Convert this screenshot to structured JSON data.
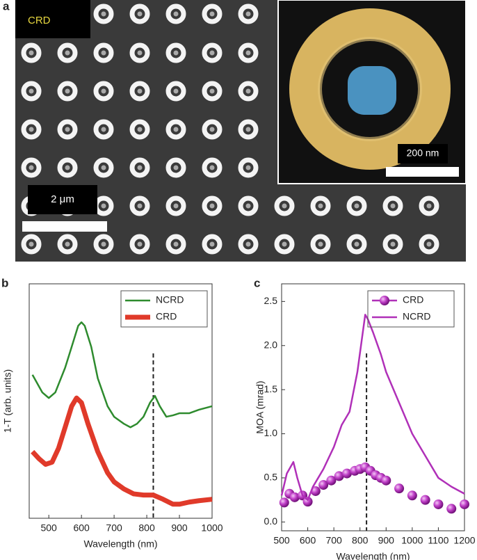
{
  "panel_a": {
    "label": "a",
    "tag": "CRD",
    "scale_bar": "2 μm",
    "inset_scale_bar": "200 nm"
  },
  "chart_data": [
    {
      "type": "line",
      "panel_label": "b",
      "x_label": "Wavelength (nm)",
      "y_label": "1-T (arb. units)",
      "xlim": [
        440,
        1000
      ],
      "xticks": [
        500,
        600,
        700,
        800,
        900,
        1000
      ],
      "ylim": [
        0,
        10
      ],
      "marker_x": 820,
      "legend": "upper right",
      "series": [
        {
          "name": "NCRD",
          "color": "#2e8b2e",
          "line_width": 2.5,
          "x": [
            450,
            480,
            500,
            520,
            550,
            570,
            590,
            600,
            610,
            630,
            650,
            680,
            700,
            730,
            750,
            770,
            790,
            810,
            825,
            840,
            860,
            880,
            900,
            930,
            960,
            1000
          ],
          "values": [
            6.12,
            5.37,
            5.13,
            5.37,
            6.42,
            7.31,
            8.21,
            8.36,
            8.21,
            7.31,
            5.97,
            4.78,
            4.33,
            4.03,
            3.88,
            4.03,
            4.33,
            4.93,
            5.22,
            4.78,
            4.33,
            4.39,
            4.48,
            4.48,
            4.63,
            4.78
          ]
        },
        {
          "name": "CRD",
          "color": "#e03a2a",
          "line_width": 7,
          "x": [
            450,
            470,
            490,
            510,
            530,
            550,
            570,
            585,
            600,
            620,
            650,
            680,
            700,
            730,
            760,
            790,
            820,
            850,
            880,
            900,
            930,
            960,
            1000
          ],
          "values": [
            2.84,
            2.54,
            2.3,
            2.39,
            2.99,
            3.88,
            4.78,
            5.13,
            4.93,
            4.03,
            2.84,
            1.94,
            1.55,
            1.25,
            1.04,
            0.99,
            0.99,
            0.81,
            0.6,
            0.6,
            0.69,
            0.75,
            0.81
          ]
        }
      ]
    },
    {
      "type": "line",
      "panel_label": "c",
      "x_label": "Wavelength (nm)",
      "y_label": "MOA (mrad)",
      "xlim": [
        500,
        1200
      ],
      "xticks": [
        500,
        600,
        700,
        800,
        900,
        1000,
        1100,
        1200
      ],
      "ylim": [
        -0.1,
        2.7
      ],
      "yticks": [
        {
          "value": 0,
          "label": "0.0"
        },
        {
          "value": 0.5,
          "label": "0.5"
        },
        {
          "value": 1,
          "label": "1.0"
        },
        {
          "value": 1.5,
          "label": "1.5"
        },
        {
          "value": 2,
          "label": "2.0"
        },
        {
          "value": 2.5,
          "label": "2.5"
        }
      ],
      "marker_x": 825,
      "legend": "upper right",
      "series": [
        {
          "name": "CRD",
          "color": "#b030b8",
          "marker": "circle",
          "x": [
            510,
            530,
            550,
            580,
            600,
            630,
            660,
            690,
            720,
            750,
            780,
            800,
            820,
            840,
            860,
            880,
            900,
            950,
            1000,
            1050,
            1100,
            1150,
            1200
          ],
          "values": [
            0.22,
            0.32,
            0.28,
            0.3,
            0.23,
            0.35,
            0.42,
            0.47,
            0.52,
            0.55,
            0.58,
            0.6,
            0.62,
            0.58,
            0.53,
            0.5,
            0.47,
            0.38,
            0.3,
            0.25,
            0.2,
            0.15,
            0.2
          ]
        },
        {
          "name": "NCRD",
          "color": "#b030b8",
          "line_width": 2.5,
          "x": [
            500,
            520,
            545,
            560,
            580,
            600,
            620,
            640,
            660,
            700,
            730,
            760,
            790,
            820,
            830,
            850,
            880,
            900,
            950,
            1000,
            1050,
            1100,
            1150,
            1200
          ],
          "values": [
            0.3,
            0.55,
            0.68,
            0.5,
            0.3,
            0.25,
            0.4,
            0.5,
            0.6,
            0.85,
            1.1,
            1.25,
            1.7,
            2.35,
            2.3,
            2.15,
            1.9,
            1.7,
            1.35,
            1.0,
            0.75,
            0.5,
            0.4,
            0.32
          ]
        }
      ]
    }
  ]
}
